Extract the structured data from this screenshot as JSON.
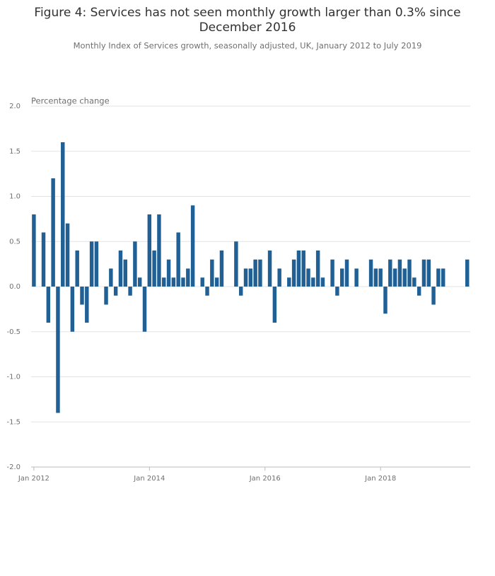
{
  "chart_data": {
    "type": "bar",
    "title": "Figure 4: Services has not seen monthly growth larger than 0.3% since December 2016",
    "subtitle": "Monthly Index of Services growth, seasonally adjusted, UK, January 2012 to July 2019",
    "y_label": "Percentage change",
    "categories": [
      "Jan 2012",
      null,
      null,
      null,
      null,
      null,
      null,
      null,
      null,
      null,
      null,
      null,
      null,
      null,
      null,
      null,
      null,
      null,
      null,
      null,
      null,
      null,
      null,
      null,
      "Jan 2014",
      null,
      null,
      null,
      null,
      null,
      null,
      null,
      null,
      null,
      null,
      null,
      null,
      null,
      null,
      null,
      null,
      null,
      null,
      null,
      null,
      null,
      null,
      null,
      "Jan 2016",
      null,
      null,
      null,
      null,
      null,
      null,
      null,
      null,
      null,
      null,
      null,
      null,
      null,
      null,
      null,
      null,
      null,
      null,
      null,
      null,
      null,
      null,
      null,
      "Jan 2018",
      null,
      null,
      null,
      null,
      null,
      null,
      null,
      null,
      null,
      null,
      null,
      null,
      null,
      null,
      null,
      null,
      null,
      null
    ],
    "values": [
      0.8,
      0,
      0.6,
      -0.4,
      1.2,
      -1.4,
      1.6,
      0.7,
      -0.5,
      0.4,
      -0.2,
      -0.4,
      0.5,
      0.5,
      0,
      -0.2,
      0.2,
      -0.1,
      0.4,
      0.3,
      -0.1,
      0.5,
      0.1,
      -0.5,
      0.8,
      0.4,
      0.8,
      0.1,
      0.3,
      0.1,
      0.6,
      0.1,
      0.2,
      0.9,
      0,
      0.1,
      -0.1,
      0.3,
      0.1,
      0.4,
      0,
      0,
      0.5,
      -0.1,
      0.2,
      0.2,
      0.3,
      0.3,
      0,
      0.4,
      -0.4,
      0.2,
      0,
      0.1,
      0.3,
      0.4,
      0.4,
      0.2,
      0.1,
      0.4,
      0.1,
      0,
      0.3,
      -0.1,
      0.2,
      0.3,
      0,
      0.2,
      0,
      0,
      0.3,
      0.2,
      0.2,
      -0.3,
      0.3,
      0.2,
      0.3,
      0.2,
      0.3,
      0.1,
      -0.1,
      0.3,
      0.3,
      -0.2,
      0.2,
      0.2,
      0,
      0,
      0,
      0,
      0.3
    ],
    "color": "#206095",
    "ylim": [
      -2,
      2
    ],
    "yticks": [
      {
        "value": -2,
        "label": "-2.0"
      },
      {
        "value": -1.5,
        "label": "-1.5"
      },
      {
        "value": -1,
        "label": "-1.0"
      },
      {
        "value": -0.5,
        "label": "-0.5"
      },
      {
        "value": 0,
        "label": "0.0"
      },
      {
        "value": 0.5,
        "label": "0.5"
      },
      {
        "value": 1,
        "label": "1.0"
      },
      {
        "value": 1.5,
        "label": "1.5"
      },
      {
        "value": 2,
        "label": "2.0"
      }
    ],
    "grid": true
  }
}
